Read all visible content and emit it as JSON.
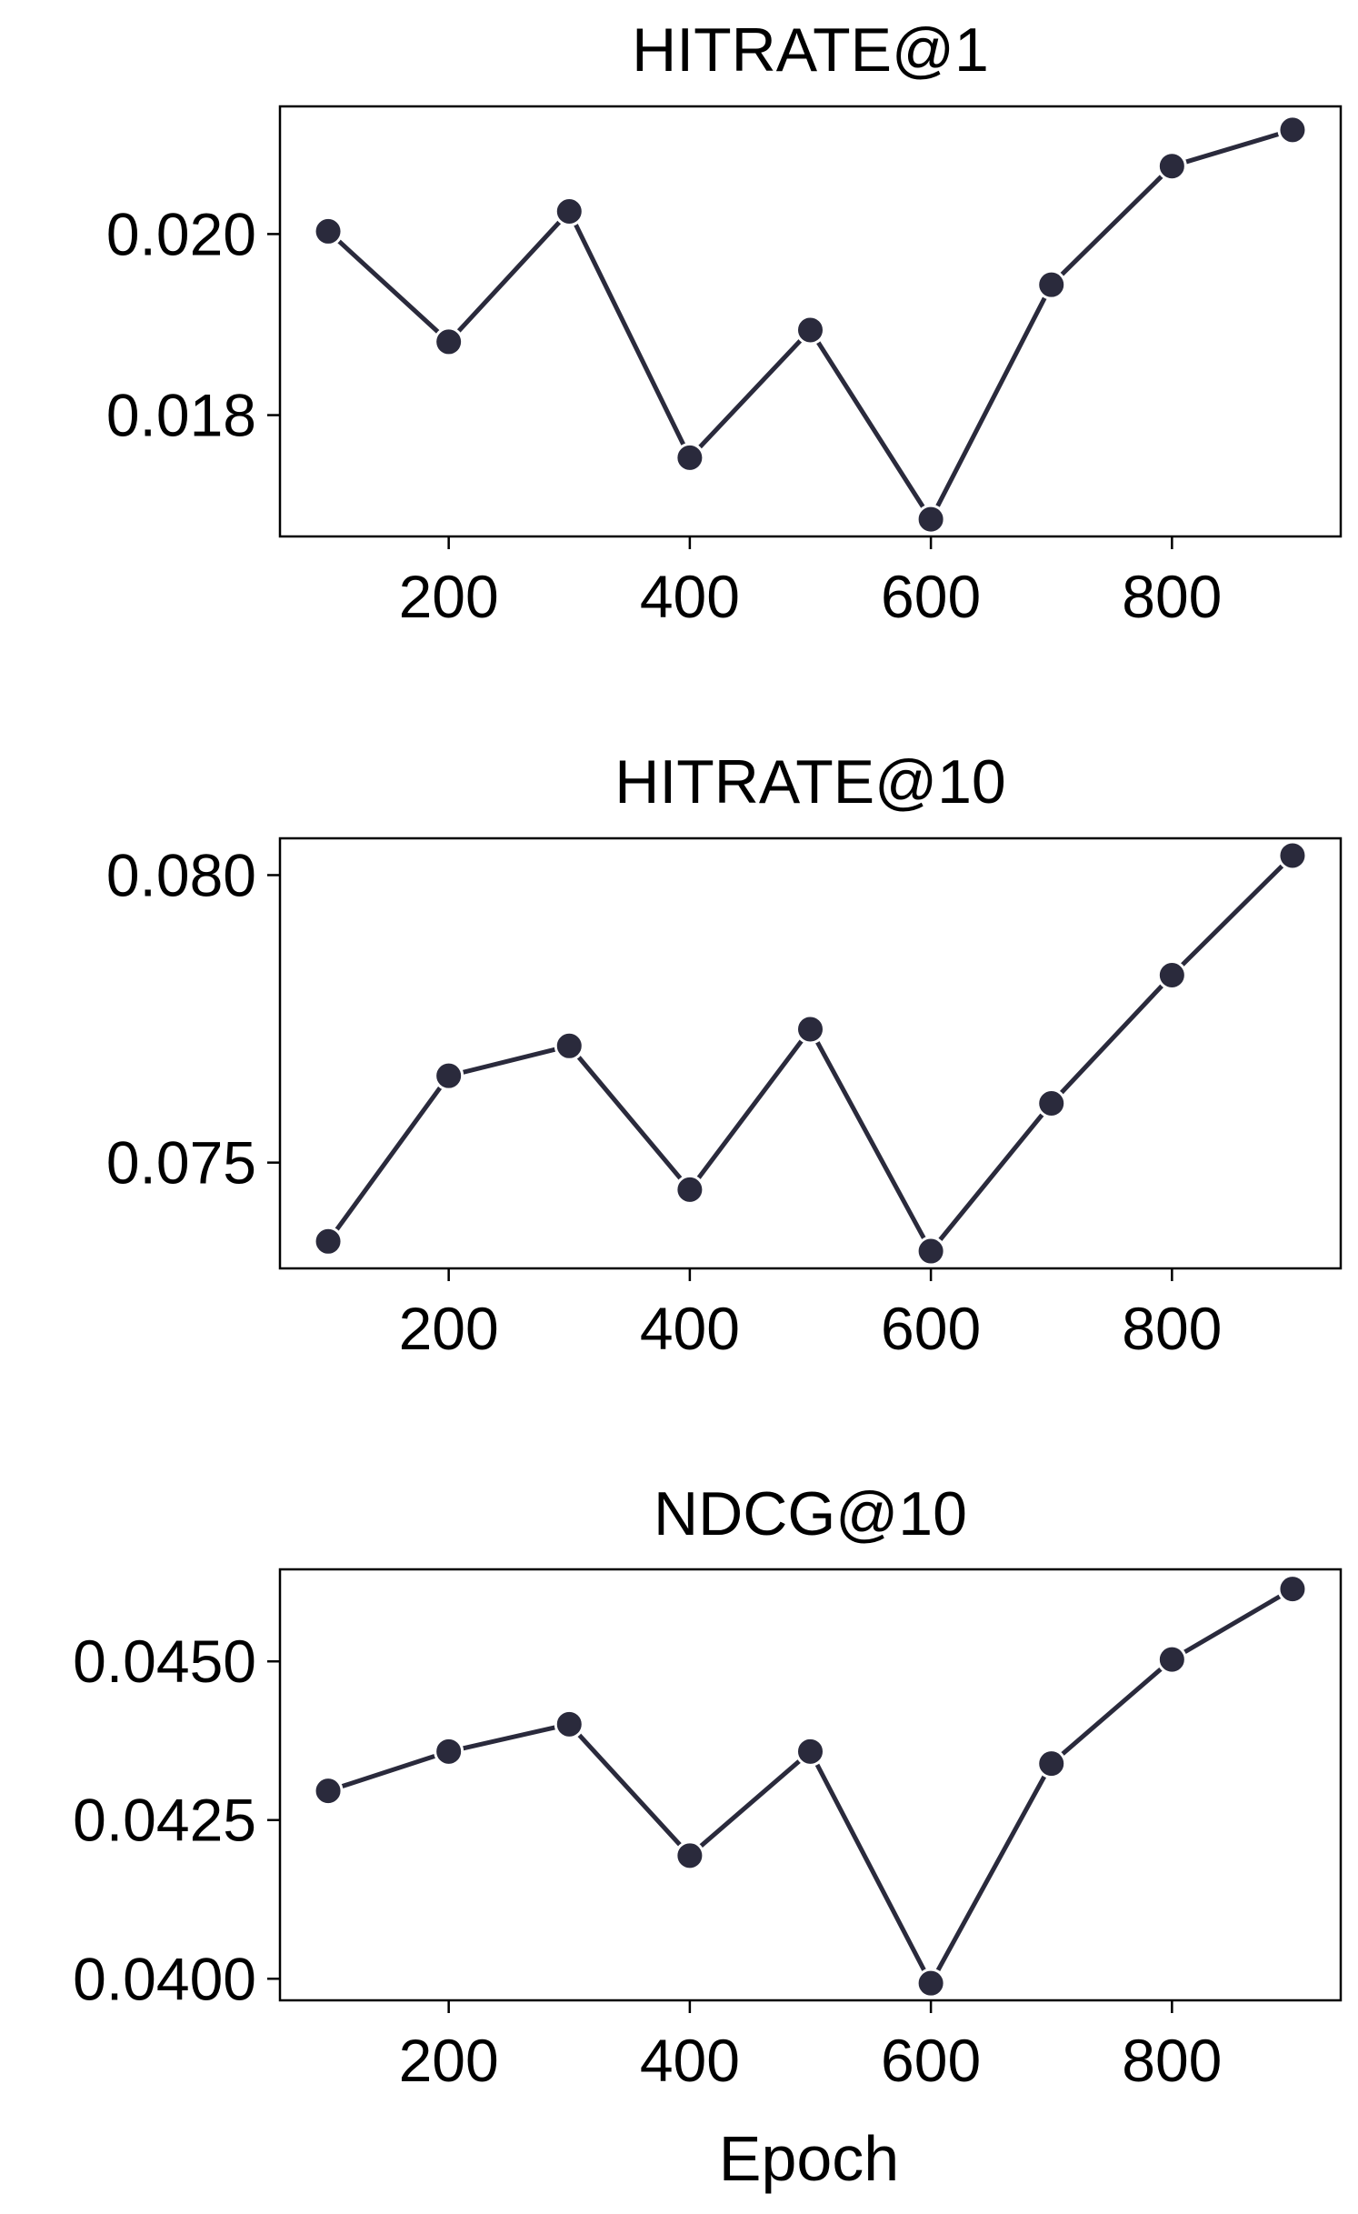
{
  "figure": {
    "xlabel": "Epoch",
    "line_color": "#2a2a3c",
    "marker_edge_color": "#ffffff"
  },
  "chart_data": [
    {
      "type": "line",
      "title": "HITRATE@1",
      "xlabel": "",
      "ylabel": "",
      "x": [
        100,
        200,
        300,
        400,
        500,
        600,
        700,
        800,
        900
      ],
      "values": [
        0.02003,
        0.01881,
        0.02025,
        0.01753,
        0.01894,
        0.01685,
        0.01944,
        0.02075,
        0.02115
      ],
      "xlim": [
        60,
        940
      ],
      "ylim": [
        0.01666,
        0.02141
      ],
      "xticks": [
        200,
        400,
        600,
        800
      ],
      "xtick_labels": [
        "200",
        "400",
        "600",
        "800"
      ],
      "yticks": [
        0.018,
        0.02
      ],
      "ytick_labels": [
        "0.018",
        "0.020"
      ],
      "grid": false,
      "legend": "none"
    },
    {
      "type": "line",
      "title": "HITRATE@10",
      "xlabel": "",
      "ylabel": "",
      "x": [
        100,
        200,
        300,
        400,
        500,
        600,
        700,
        800,
        900
      ],
      "values": [
        0.07363,
        0.07651,
        0.07703,
        0.07453,
        0.07732,
        0.07346,
        0.07603,
        0.07826,
        0.08034
      ],
      "xlim": [
        60,
        940
      ],
      "ylim": [
        0.07316,
        0.08064
      ],
      "xticks": [
        200,
        400,
        600,
        800
      ],
      "xtick_labels": [
        "200",
        "400",
        "600",
        "800"
      ],
      "yticks": [
        0.075,
        0.08
      ],
      "ytick_labels": [
        "0.075",
        "0.080"
      ],
      "grid": false,
      "legend": "none"
    },
    {
      "type": "line",
      "title": "NDCG@10",
      "xlabel": "Epoch",
      "ylabel": "",
      "x": [
        100,
        200,
        300,
        400,
        500,
        600,
        700,
        800,
        900
      ],
      "values": [
        0.04296,
        0.04358,
        0.04401,
        0.04194,
        0.04358,
        0.03993,
        0.04339,
        0.04503,
        0.04614
      ],
      "xlim": [
        60,
        940
      ],
      "ylim": [
        0.03966,
        0.04645
      ],
      "xticks": [
        200,
        400,
        600,
        800
      ],
      "xtick_labels": [
        "200",
        "400",
        "600",
        "800"
      ],
      "yticks": [
        0.04,
        0.0425,
        0.045
      ],
      "ytick_labels": [
        "0.0400",
        "0.0425",
        "0.0450"
      ],
      "grid": false,
      "legend": "none"
    }
  ]
}
